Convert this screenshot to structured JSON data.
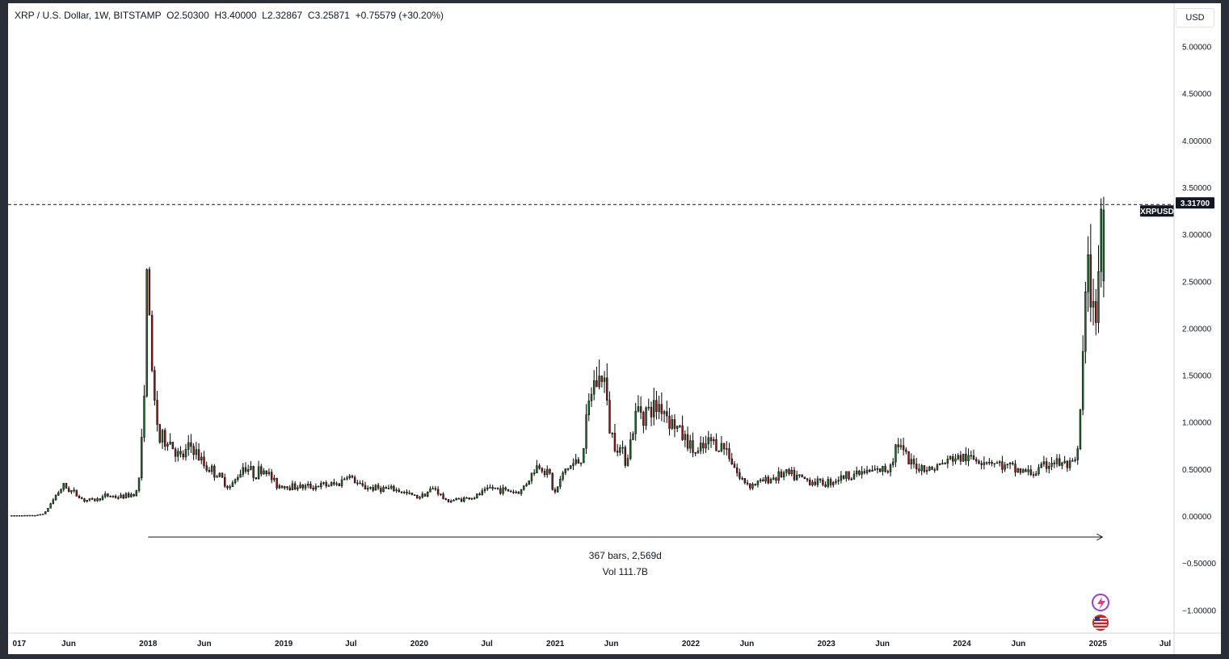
{
  "legend": {
    "symbol": "XRP / U.S. Dollar, 1W, BITSTAMP",
    "open": "O2.50300",
    "high": "H3.40000",
    "low": "L2.32867",
    "close": "C3.25871",
    "change": "+0.75579 (+30.20%)"
  },
  "currency_button": "USD",
  "last_price_badge": "3.31700",
  "symbol_badge": "XRPUSD",
  "measure": {
    "bars_label": "367 bars, 2,569d",
    "volume_label": "Vol 111.7B"
  },
  "colors": {
    "background": "#ffffff",
    "frame": "#2a2e39",
    "candle_up": "#1e6b2b",
    "candle_down": "#8c1a1a",
    "wick": "#000000",
    "badge_bg": "#131722",
    "badge_text": "#ffffff",
    "dashed_line": "#131722"
  },
  "icons": [
    "lightning-sparkle-icon",
    "us-flag-icon"
  ],
  "chart_data": {
    "type": "candlestick",
    "title": "XRP / U.S. Dollar, 1W, BITSTAMP",
    "price_axis": {
      "ticks": [
        5.0,
        4.5,
        4.0,
        3.5,
        3.0,
        2.5,
        2.0,
        1.5,
        1.0,
        0.5,
        0.0,
        -0.5,
        -1.0
      ],
      "tick_labels": [
        "5.00000",
        "4.50000",
        "4.00000",
        "3.50000",
        "3.00000",
        "2.50000",
        "2.00000",
        "1.50000",
        "1.00000",
        "0.50000",
        "0.00000",
        "−0.50000",
        "−1.00000"
      ],
      "range": [
        -1.1,
        5.4
      ]
    },
    "time_axis": {
      "ticks": [
        "2017-01-01",
        "2017-06-01",
        "2018-01-01",
        "2018-06-01",
        "2019-01-01",
        "2019-07-01",
        "2020-01-01",
        "2020-07-01",
        "2021-01-01",
        "2021-06-01",
        "2022-01-01",
        "2022-06-01",
        "2023-01-01",
        "2023-06-01",
        "2024-01-01",
        "2024-06-01",
        "2025-01-01",
        "2025-07-01"
      ],
      "tick_labels": [
        "017",
        "Jun",
        "2018",
        "Jun",
        "2019",
        "Jul",
        "2020",
        "Jul",
        "2021",
        "Jun",
        "2022",
        "Jun",
        "2023",
        "Jun",
        "2024",
        "Jun",
        "2025",
        "Jul"
      ],
      "range": [
        "2016-12-20",
        "2025-07-01"
      ]
    },
    "price_line": 3.317,
    "measure_range": {
      "start": "2018-01-01",
      "end": "2025-01-13",
      "bars": 367,
      "days": 2569
    },
    "price_path": [
      [
        "2016-12-20",
        0.006
      ],
      [
        "2017-03-10",
        0.008
      ],
      [
        "2017-04-01",
        0.03
      ],
      [
        "2017-05-01",
        0.22
      ],
      [
        "2017-05-20",
        0.32
      ],
      [
        "2017-06-15",
        0.26
      ],
      [
        "2017-07-15",
        0.17
      ],
      [
        "2017-08-15",
        0.17
      ],
      [
        "2017-09-15",
        0.22
      ],
      [
        "2017-10-15",
        0.2
      ],
      [
        "2017-11-15",
        0.22
      ],
      [
        "2017-12-08",
        0.27
      ],
      [
        "2017-12-18",
        0.75
      ],
      [
        "2017-12-25",
        1.5
      ],
      [
        "2018-01-04",
        2.75
      ],
      [
        "2018-01-15",
        1.4
      ],
      [
        "2018-02-05",
        0.8
      ],
      [
        "2018-03-01",
        0.82
      ],
      [
        "2018-04-01",
        0.6
      ],
      [
        "2018-05-01",
        0.75
      ],
      [
        "2018-06-01",
        0.55
      ],
      [
        "2018-07-01",
        0.47
      ],
      [
        "2018-08-15",
        0.3
      ],
      [
        "2018-09-20",
        0.55
      ],
      [
        "2018-10-15",
        0.45
      ],
      [
        "2018-11-15",
        0.5
      ],
      [
        "2018-12-15",
        0.33
      ],
      [
        "2019-03-01",
        0.31
      ],
      [
        "2019-06-01",
        0.34
      ],
      [
        "2019-06-25",
        0.44
      ],
      [
        "2019-08-01",
        0.31
      ],
      [
        "2019-11-01",
        0.28
      ],
      [
        "2020-01-01",
        0.2
      ],
      [
        "2020-02-15",
        0.3
      ],
      [
        "2020-03-15",
        0.16
      ],
      [
        "2020-06-01",
        0.2
      ],
      [
        "2020-07-15",
        0.3
      ],
      [
        "2020-10-01",
        0.25
      ],
      [
        "2020-11-20",
        0.55
      ],
      [
        "2020-12-20",
        0.45
      ],
      [
        "2021-01-01",
        0.22
      ],
      [
        "2021-02-01",
        0.5
      ],
      [
        "2021-03-15",
        0.6
      ],
      [
        "2021-04-15",
        1.4
      ],
      [
        "2021-05-15",
        1.5
      ],
      [
        "2021-06-01",
        0.9
      ],
      [
        "2021-07-15",
        0.6
      ],
      [
        "2021-08-15",
        1.15
      ],
      [
        "2021-09-15",
        1.1
      ],
      [
        "2021-10-15",
        1.2
      ],
      [
        "2021-11-15",
        1.0
      ],
      [
        "2021-12-15",
        0.85
      ],
      [
        "2022-01-20",
        0.65
      ],
      [
        "2022-03-01",
        0.8
      ],
      [
        "2022-04-15",
        0.7
      ],
      [
        "2022-05-15",
        0.4
      ],
      [
        "2022-06-15",
        0.33
      ],
      [
        "2022-09-15",
        0.45
      ],
      [
        "2022-11-15",
        0.38
      ],
      [
        "2023-01-01",
        0.35
      ],
      [
        "2023-03-15",
        0.45
      ],
      [
        "2023-05-01",
        0.47
      ],
      [
        "2023-06-20",
        0.5
      ],
      [
        "2023-07-15",
        0.8
      ],
      [
        "2023-08-15",
        0.55
      ],
      [
        "2023-10-15",
        0.5
      ],
      [
        "2023-12-15",
        0.62
      ],
      [
        "2024-03-15",
        0.6
      ],
      [
        "2024-05-01",
        0.52
      ],
      [
        "2024-07-15",
        0.45
      ],
      [
        "2024-09-01",
        0.58
      ],
      [
        "2024-11-01",
        0.52
      ],
      [
        "2024-11-12",
        0.7
      ],
      [
        "2024-11-22",
        1.4
      ],
      [
        "2024-12-03",
        2.35
      ],
      [
        "2024-12-12",
        2.55
      ],
      [
        "2024-12-22",
        2.1
      ],
      [
        "2025-01-01",
        2.35
      ],
      [
        "2025-01-13",
        3.26
      ]
    ]
  }
}
